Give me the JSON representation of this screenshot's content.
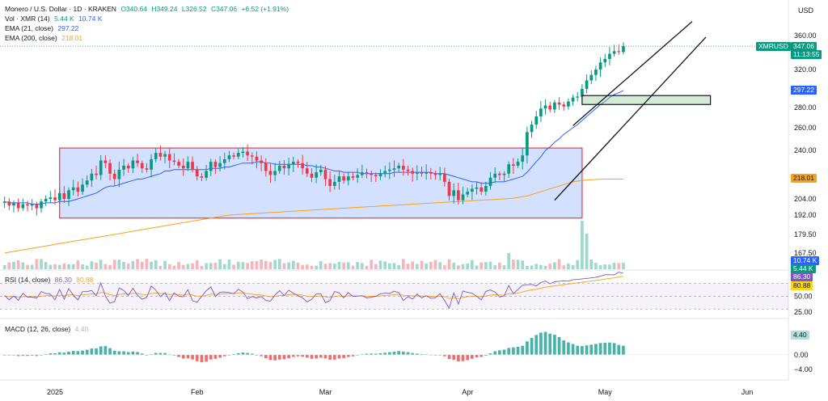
{
  "header": {
    "symbol_title": "Monero / U.S. Dollar · 1D · KRAKEN",
    "open": "O340.64",
    "high": "H349.24",
    "low": "L326.52",
    "close": "C347.06",
    "change": "+6.52 (+1.91%)"
  },
  "indicators": {
    "vol": {
      "label": "Vol · XMR (14)",
      "v1": "5.44 K",
      "v2": "10.74 K"
    },
    "ema21": {
      "label": "EMA (21, close)",
      "value": "297.22"
    },
    "ema200": {
      "label": "EMA (200, close)",
      "value": "218.01"
    },
    "rsi": {
      "label": "RSI (14, close)",
      "v1": "86.30",
      "v2": "80.88"
    },
    "macd": {
      "label": "MACD (12, 26, close)",
      "value": "4.40"
    }
  },
  "price_axis": {
    "currency": "USD",
    "ticks": [
      "360.00",
      "320.00",
      "280.00",
      "260.00",
      "240.00",
      "204.00",
      "192.00",
      "179.50",
      "167.50"
    ]
  },
  "rsi_axis": {
    "ticks": [
      "50.00",
      "25.00"
    ]
  },
  "macd_axis": {
    "ticks": [
      "0.00",
      "−4.00"
    ]
  },
  "time_axis": {
    "labels": [
      "2025",
      "Feb",
      "Mar",
      "Apr",
      "May",
      "Jun"
    ]
  },
  "tags": {
    "symbol": "XMRUSD",
    "last_price": "347.06",
    "countdown": "11:13:55",
    "ema21": "297.22",
    "ema200": "218.01",
    "vol1": "10.74 K",
    "vol2": "5.44 K",
    "rsi1": "86.30",
    "rsi2": "80.88",
    "macd": "4.40"
  },
  "colors": {
    "up": "#089981",
    "down": "#f23645",
    "ema21": "#2962ff",
    "ema200": "#f7a21b",
    "rsi": "#7e57c2",
    "range_box": "#f23645",
    "resistance_box": "#2e7d32"
  },
  "chart_data": {
    "type": "candlestick",
    "x_range": [
      "2024-12-20",
      "2025-06-10"
    ],
    "candles": {
      "start_date": "2024-12-21",
      "closes": [
        202,
        199,
        201,
        197,
        200,
        199,
        200,
        197,
        202,
        204,
        205,
        203,
        208,
        204,
        210,
        212,
        209,
        214,
        217,
        222,
        221,
        232,
        230,
        222,
        218,
        225,
        228,
        226,
        232,
        230,
        226,
        225,
        233,
        238,
        235,
        237,
        232,
        231,
        228,
        226,
        231,
        225,
        220,
        219,
        224,
        231,
        227,
        230,
        233,
        236,
        235,
        238,
        239,
        236,
        235,
        232,
        230,
        224,
        221,
        224,
        228,
        226,
        229,
        231,
        230,
        226,
        222,
        219,
        223,
        225,
        218,
        213,
        216,
        220,
        217,
        220,
        219,
        221,
        223,
        222,
        221,
        220,
        222,
        224,
        225,
        226,
        228,
        225,
        224,
        222,
        223,
        222,
        223,
        222,
        221,
        222,
        216,
        206,
        210,
        203,
        207,
        209,
        211,
        212,
        209,
        213,
        219,
        222,
        221,
        222,
        229,
        228,
        231,
        236,
        256,
        263,
        271,
        279,
        282,
        278,
        285,
        283,
        281,
        286,
        290,
        291,
        299,
        308,
        314,
        320,
        328,
        332,
        338,
        341,
        340,
        347
      ]
    },
    "ema21": [
      202,
      201,
      201,
      201,
      201,
      201,
      200,
      200,
      200,
      201,
      201,
      201,
      202,
      202,
      202,
      203,
      204,
      205,
      206,
      207,
      208,
      210,
      212,
      213,
      213,
      214,
      215,
      216,
      217,
      218,
      218,
      219,
      220,
      221,
      222,
      224,
      224,
      225,
      225,
      225,
      225,
      225,
      225,
      225,
      225,
      226,
      226,
      226,
      227,
      227,
      228,
      229,
      230,
      230,
      230,
      231,
      231,
      230,
      230,
      229,
      229,
      229,
      229,
      229,
      229,
      229,
      228,
      228,
      227,
      227,
      226,
      225,
      224,
      224,
      223,
      223,
      223,
      223,
      222,
      222,
      222,
      222,
      222,
      222,
      222,
      223,
      223,
      223,
      223,
      223,
      223,
      223,
      223,
      223,
      222,
      222,
      222,
      221,
      220,
      219,
      218,
      217,
      216,
      216,
      215,
      215,
      215,
      216,
      216,
      216,
      217,
      218,
      219,
      220,
      223,
      227,
      231,
      235,
      240,
      243,
      247,
      250,
      254,
      257,
      260,
      263,
      267,
      271,
      275,
      279,
      283,
      286,
      290,
      293,
      295,
      297.22
    ],
    "ema200": [
      167.5,
      168,
      168.5,
      169,
      169.5,
      170,
      170.5,
      171,
      171.5,
      172,
      172.5,
      173,
      173.5,
      174,
      174.5,
      175,
      175.5,
      176,
      176.5,
      177,
      177.5,
      178,
      178.5,
      179,
      179.5,
      180,
      180.5,
      181,
      181.5,
      182,
      182.5,
      183,
      183.5,
      184,
      184.5,
      185,
      185.5,
      186,
      186.5,
      187,
      187.5,
      188,
      188.5,
      189,
      189.5,
      190,
      190.5,
      191,
      191.5,
      192,
      192.2,
      192.4,
      192.6,
      192.8,
      193,
      193.2,
      193.4,
      193.6,
      193.8,
      194,
      194.2,
      194.4,
      194.6,
      194.8,
      195,
      195.2,
      195.4,
      195.6,
      195.8,
      196,
      196.2,
      196.4,
      196.6,
      196.8,
      197,
      197.2,
      197.4,
      197.6,
      197.8,
      198,
      198.2,
      198.4,
      198.6,
      198.8,
      199,
      199.2,
      199.4,
      199.6,
      199.8,
      200,
      200.2,
      200.4,
      200.6,
      200.8,
      201,
      201.2,
      201.4,
      201.6,
      201.8,
      202,
      202.2,
      202.4,
      202.6,
      202.8,
      203,
      203.2,
      203.4,
      203.6,
      203.8,
      204,
      204.2,
      204.5,
      205,
      205.5,
      206,
      207,
      208,
      209,
      210,
      211,
      212,
      213,
      214,
      215,
      216,
      216.5,
      217,
      217.3,
      217.5,
      217.7,
      217.9,
      218,
      218,
      218,
      218.01,
      218.01
    ],
    "annotations": {
      "range_box": {
        "from": "2025-01-02",
        "to": "2025-04-26",
        "low": 190,
        "high": 242
      },
      "resistance_box": {
        "from": "2025-04-26",
        "to": "2025-05-24",
        "low": 283,
        "high": 292
      },
      "channel_upper": [
        [
          "2025-04-24",
          262
        ],
        [
          "2025-05-20",
          378
        ]
      ],
      "channel_lower": [
        [
          "2025-04-20",
          203
        ],
        [
          "2025-05-23",
          358
        ]
      ]
    },
    "rsi_ylim": [
      20,
      90
    ],
    "macd_ylim": [
      -6,
      9
    ]
  }
}
